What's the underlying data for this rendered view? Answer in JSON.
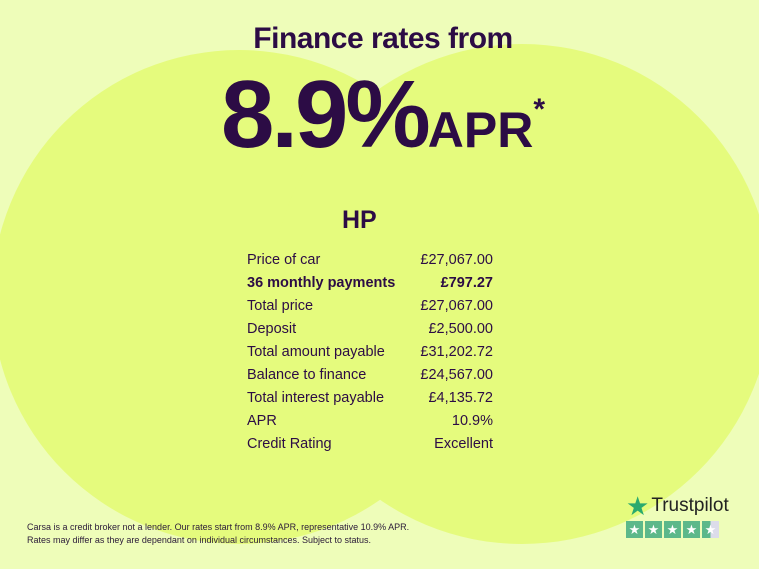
{
  "header": {
    "title": "Finance rates from",
    "rate": "8.9%",
    "rate_suffix": "APR",
    "asterisk": "*"
  },
  "finance": {
    "type": "HP",
    "rows": [
      {
        "label": "Price of car",
        "value": "£27,067.00",
        "bold": false
      },
      {
        "label": "36 monthly payments",
        "value": "£797.27",
        "bold": true
      },
      {
        "label": "Total price",
        "value": "£27,067.00",
        "bold": false
      },
      {
        "label": "Deposit",
        "value": "£2,500.00",
        "bold": false
      },
      {
        "label": "Total amount payable",
        "value": "£31,202.72",
        "bold": false
      },
      {
        "label": "Balance to finance",
        "value": "£24,567.00",
        "bold": false
      },
      {
        "label": "Total interest payable",
        "value": "£4,135.72",
        "bold": false
      },
      {
        "label": "APR",
        "value": "10.9%",
        "bold": false
      },
      {
        "label": "Credit Rating",
        "value": "Excellent",
        "bold": false
      }
    ]
  },
  "disclaimer": {
    "line1": "Carsa is a credit broker not a lender. Our rates start from 8.9% APR, representative 10.9% APR.",
    "line2": "Rates may differ as they are dependant on individual circumstances. Subject to status."
  },
  "trustpilot": {
    "name": "Trustpilot",
    "rating_stars": 4.5,
    "max_stars": 5,
    "brand_color": "#00b67a"
  },
  "colors": {
    "background": "#eefdb9",
    "circles": "#e5fb7d",
    "text": "#2c0c45"
  }
}
